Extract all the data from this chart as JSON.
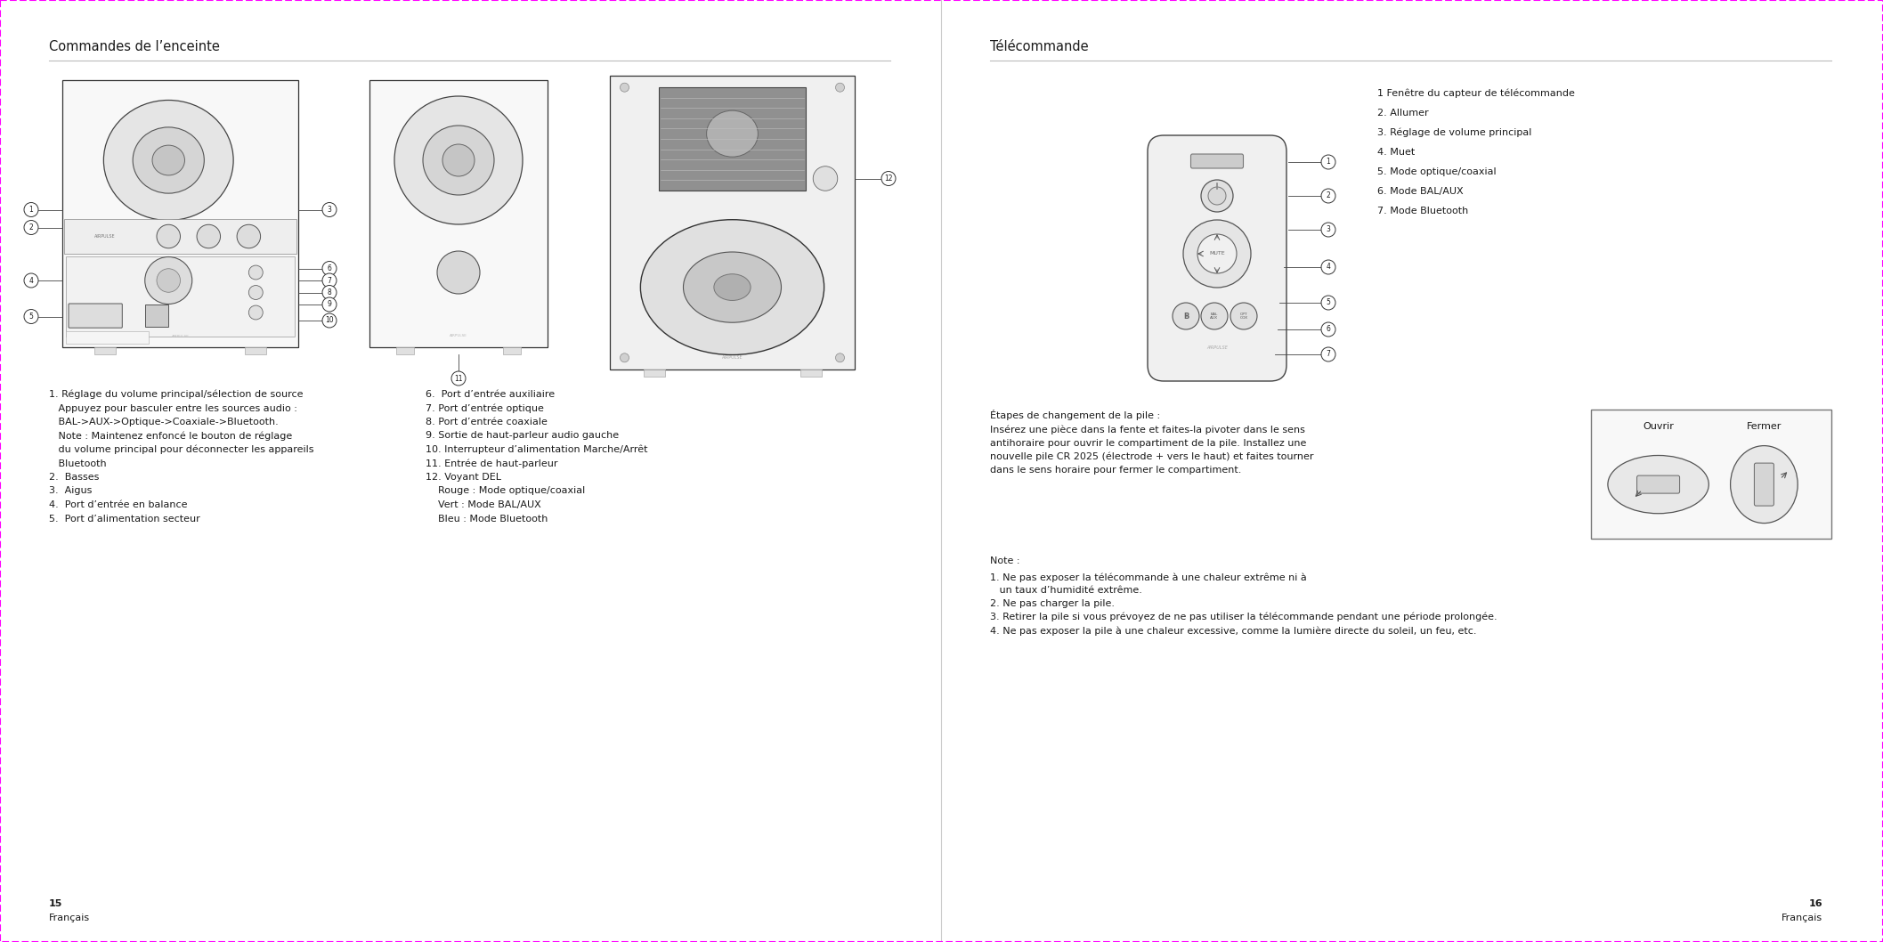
{
  "bg_color": "#ffffff",
  "page_border_color": "#ff00ff",
  "text_color": "#1a1a1a",
  "title_left": "Commandes de l’enceinte",
  "title_right": "Télécommande",
  "page_num_left": "15",
  "page_num_right": "16",
  "lang_label": "Français",
  "col1_lines": [
    "1. Réglage du volume principal/sélection de source",
    "   Appuyez pour basculer entre les sources audio :",
    "   BAL->AUX->Optique->Coaxiale->Bluetooth.",
    "   Note : Maintenez enfoncé le bouton de réglage",
    "   du volume principal pour déconnecter les appareils",
    "   Bluetooth",
    "2.  Basses",
    "3.  Aigus",
    "4.  Port d’entrée en balance",
    "5.  Port d’alimentation secteur"
  ],
  "col2_lines": [
    "6.  Port d’entrée auxiliaire",
    "7. Port d’entrée optique",
    "8. Port d’entrée coaxiale",
    "9. Sortie de haut-parleur audio gauche",
    "10. Interrupteur d’alimentation Marche/Arrêt",
    "11. Entrée de haut-parleur",
    "12. Voyant DEL",
    "    Rouge : Mode optique/coaxial",
    "    Vert : Mode BAL/AUX",
    "    Bleu : Mode Bluetooth"
  ],
  "right_items": [
    "1 Fenêtre du capteur de télécommande",
    "2. Allumer",
    "3. Réglage de volume principal",
    "4. Muet",
    "5. Mode optique/coaxial",
    "6. Mode BAL/AUX",
    "7. Mode Bluetooth"
  ],
  "battery_title": "Étapes de changement de la pile :",
  "battery_lines": [
    "Insérez une pièce dans la fente et faites-la pivoter dans le sens",
    "antihoraire pour ouvrir le compartiment de la pile. Installez une",
    "nouvelle pile CR 2025 (électrode + vers le haut) et faites tourner",
    "dans le sens horaire pour fermer le compartiment."
  ],
  "note_title": "Note :",
  "note_lines": [
    "1. Ne pas exposer la télécommande à une chaleur extrême ni à",
    "   un taux d’humidité extrême.",
    "2. Ne pas charger la pile.",
    "3. Retirer la pile si vous prévoyez de ne pas utiliser la télécommande pendant une période prolongée.",
    "4. Ne pas exposer la pile à une chaleur excessive, comme la lumière directe du soleil, un feu, etc."
  ],
  "open_label": "Ouvrir",
  "close_label": "Fermer"
}
